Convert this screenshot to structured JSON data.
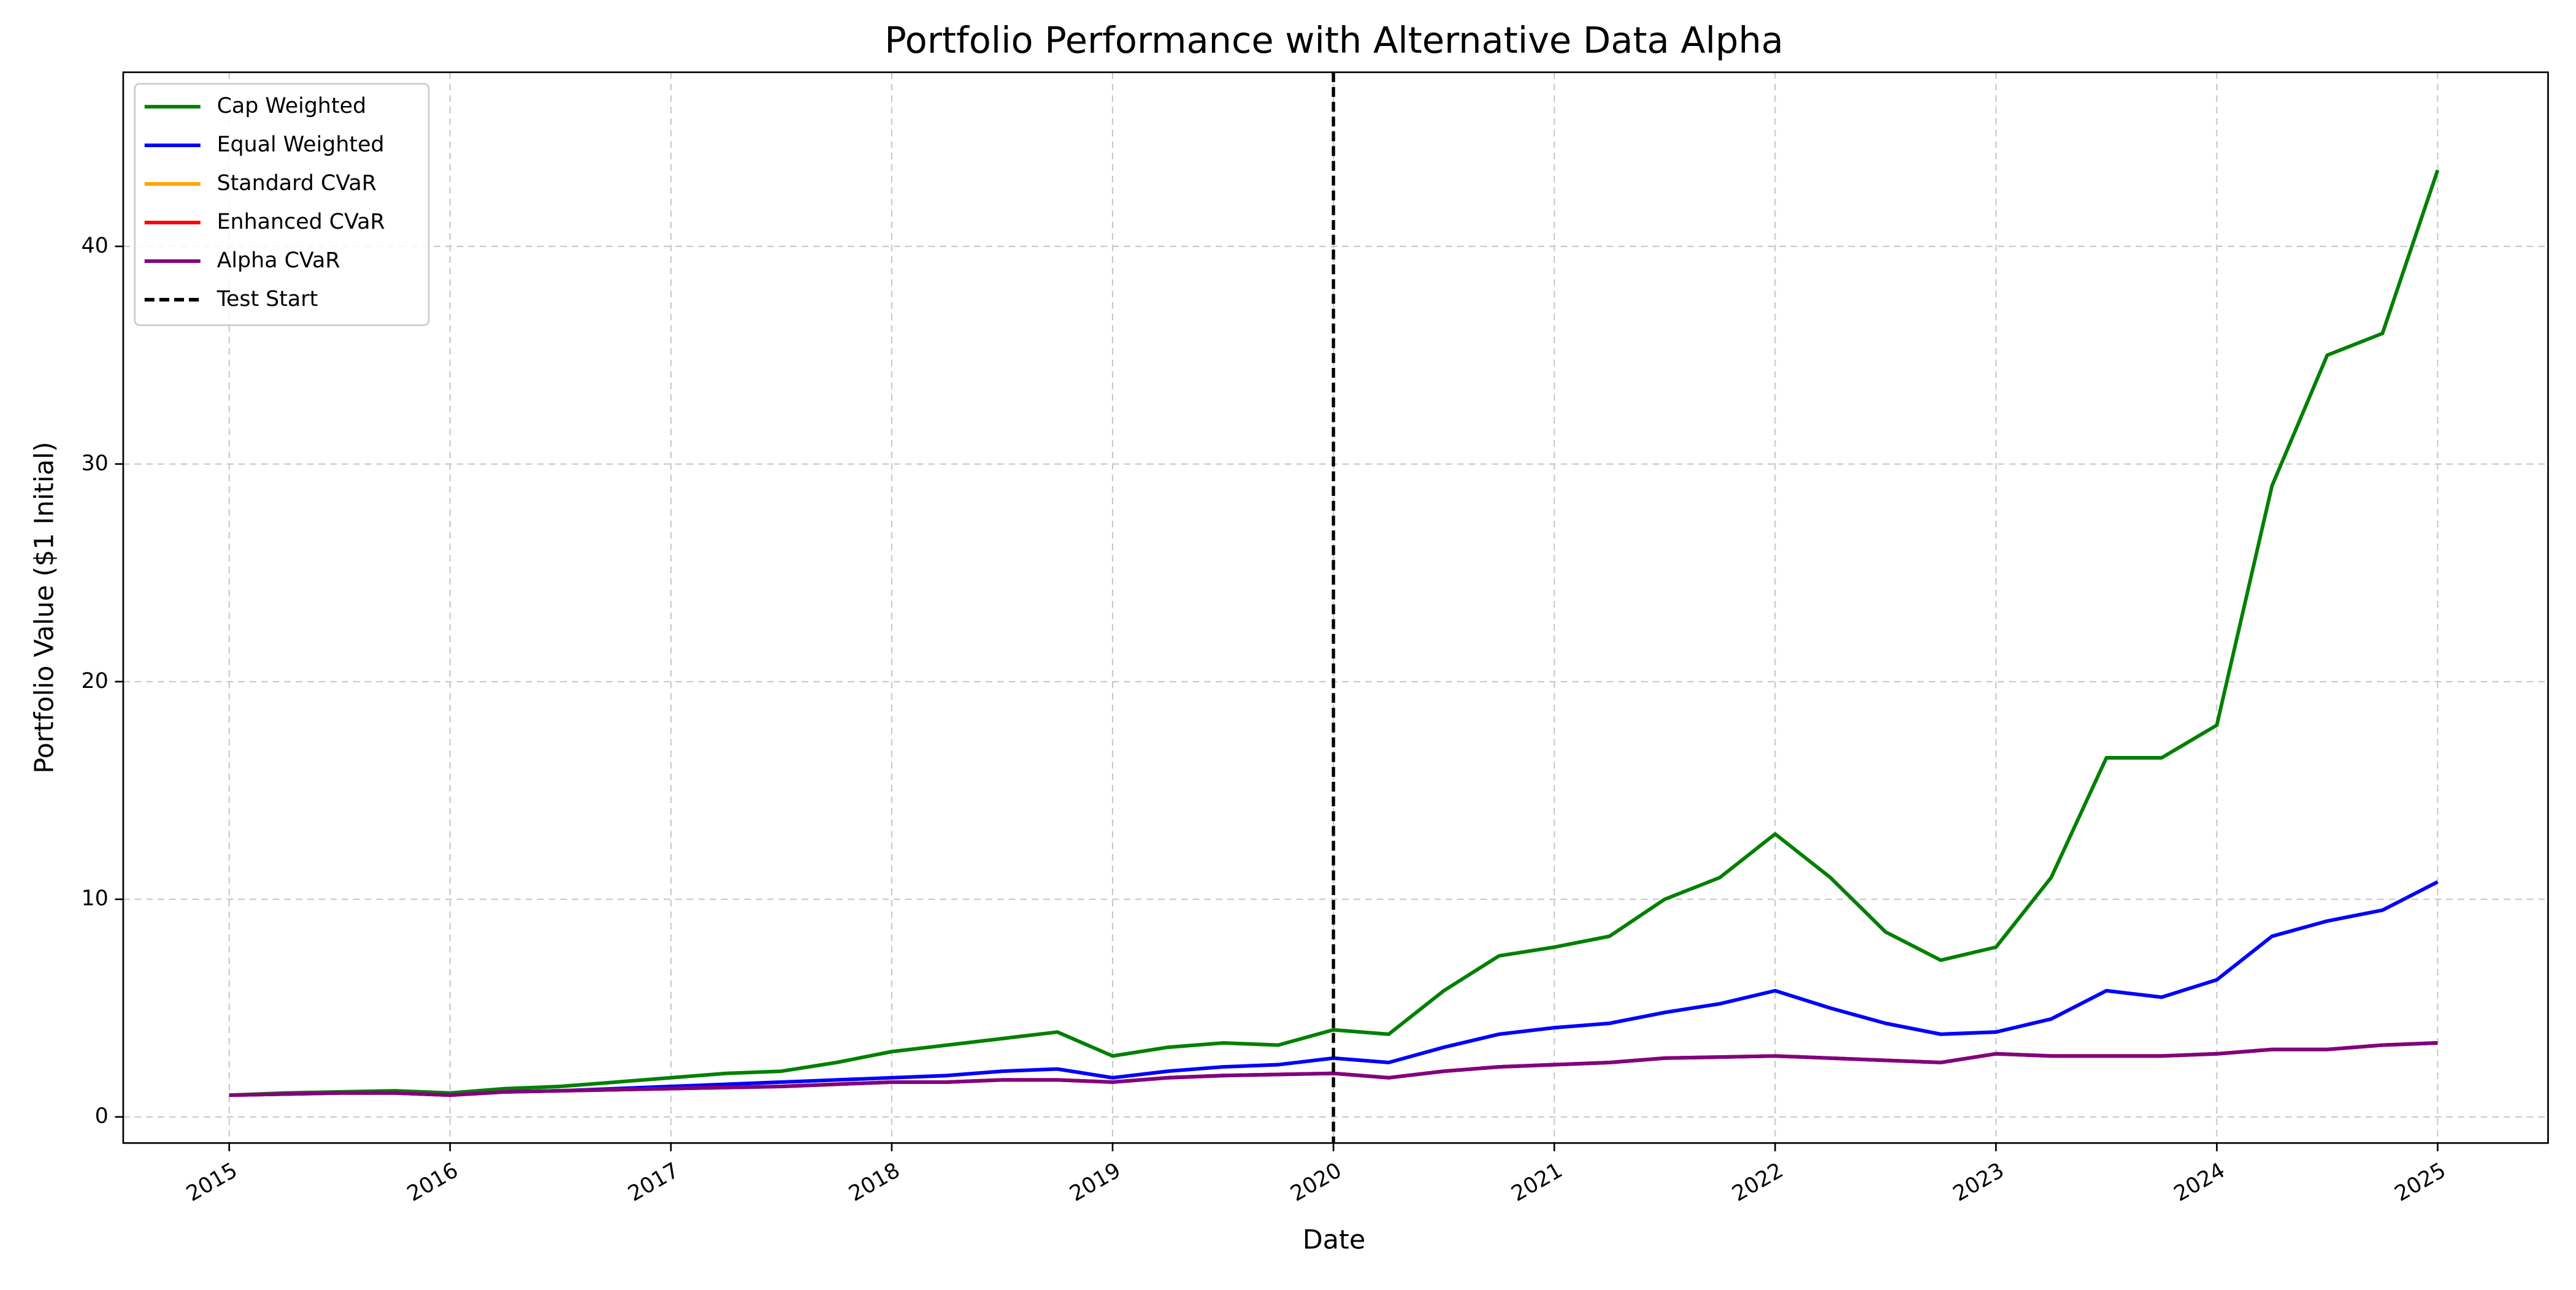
{
  "chart_data": {
    "type": "line",
    "title": "Portfolio Performance with Alternative Data Alpha",
    "x_label": "Date",
    "y_label": "Portfolio Value ($1 Initial)",
    "x": [
      2015,
      2015.25,
      2015.5,
      2015.75,
      2016,
      2016.25,
      2016.5,
      2016.75,
      2017,
      2017.25,
      2017.5,
      2017.75,
      2018,
      2018.25,
      2018.5,
      2018.75,
      2019,
      2019.25,
      2019.5,
      2019.75,
      2020,
      2020.25,
      2020.5,
      2020.75,
      2021,
      2021.25,
      2021.5,
      2021.75,
      2022,
      2022.25,
      2022.5,
      2022.75,
      2023,
      2023.25,
      2023.5,
      2023.75,
      2024,
      2024.25,
      2024.5,
      2024.75,
      2025
    ],
    "series": [
      {
        "name": "Cap Weighted",
        "color": "green",
        "values": [
          1.0,
          1.1,
          1.15,
          1.2,
          1.1,
          1.3,
          1.4,
          1.6,
          1.8,
          2.0,
          2.1,
          2.5,
          3.0,
          3.3,
          3.6,
          3.9,
          2.8,
          3.2,
          3.4,
          3.3,
          4.0,
          3.8,
          5.8,
          7.4,
          7.8,
          8.3,
          10.0,
          11.0,
          13.0,
          11.0,
          8.5,
          7.2,
          7.8,
          11.0,
          16.5,
          16.5,
          18.0,
          29.0,
          35.0,
          36.0,
          43.5
        ]
      },
      {
        "name": "Equal Weighted",
        "color": "blue",
        "values": [
          1.0,
          1.05,
          1.1,
          1.1,
          1.0,
          1.15,
          1.2,
          1.3,
          1.4,
          1.5,
          1.6,
          1.7,
          1.8,
          1.9,
          2.1,
          2.2,
          1.8,
          2.1,
          2.3,
          2.4,
          2.7,
          2.5,
          3.2,
          3.8,
          4.1,
          4.3,
          4.8,
          5.2,
          5.8,
          5.0,
          4.3,
          3.8,
          3.9,
          4.5,
          5.8,
          5.5,
          6.3,
          8.3,
          9.0,
          9.5,
          10.8
        ]
      },
      {
        "name": "Standard CVaR",
        "color": "orange",
        "values": [
          1.0,
          1.05,
          1.1,
          1.1,
          1.0,
          1.15,
          1.2,
          1.25,
          1.3,
          1.35,
          1.4,
          1.5,
          1.6,
          1.6,
          1.7,
          1.7,
          1.6,
          1.8,
          1.9,
          1.95,
          2.0,
          1.8,
          2.1,
          2.3,
          2.4,
          2.5,
          2.7,
          2.75,
          2.8,
          2.7,
          2.6,
          2.5,
          2.9,
          2.8,
          2.8,
          2.8,
          2.9,
          3.1,
          3.1,
          3.3,
          3.4
        ]
      },
      {
        "name": "Enhanced CVaR",
        "color": "red",
        "values": [
          1.0,
          1.05,
          1.1,
          1.1,
          1.0,
          1.15,
          1.2,
          1.25,
          1.3,
          1.35,
          1.4,
          1.5,
          1.6,
          1.6,
          1.7,
          1.7,
          1.6,
          1.8,
          1.9,
          1.95,
          2.0,
          1.8,
          2.1,
          2.3,
          2.4,
          2.5,
          2.7,
          2.75,
          2.8,
          2.7,
          2.6,
          2.5,
          2.9,
          2.8,
          2.8,
          2.8,
          2.9,
          3.1,
          3.1,
          3.3,
          3.4
        ]
      },
      {
        "name": "Alpha CVaR",
        "color": "purple",
        "values": [
          1.0,
          1.05,
          1.1,
          1.1,
          1.0,
          1.15,
          1.2,
          1.25,
          1.3,
          1.35,
          1.4,
          1.5,
          1.6,
          1.6,
          1.7,
          1.7,
          1.6,
          1.8,
          1.9,
          1.95,
          2.0,
          1.8,
          2.1,
          2.3,
          2.4,
          2.5,
          2.7,
          2.75,
          2.8,
          2.7,
          2.6,
          2.5,
          2.9,
          2.8,
          2.8,
          2.8,
          2.9,
          3.1,
          3.1,
          3.3,
          3.4
        ]
      }
    ],
    "vlines": [
      {
        "name": "Test Start",
        "x": 2020,
        "color": "black"
      }
    ],
    "xlim": [
      2014.52,
      2025.5
    ],
    "xticks": [
      2015,
      2016,
      2017,
      2018,
      2019,
      2020,
      2021,
      2022,
      2023,
      2024,
      2025
    ],
    "ylim": [
      -1.2,
      48
    ],
    "yticks": [
      0,
      10,
      20,
      30,
      40
    ],
    "grid": true,
    "legend": "upper left"
  }
}
